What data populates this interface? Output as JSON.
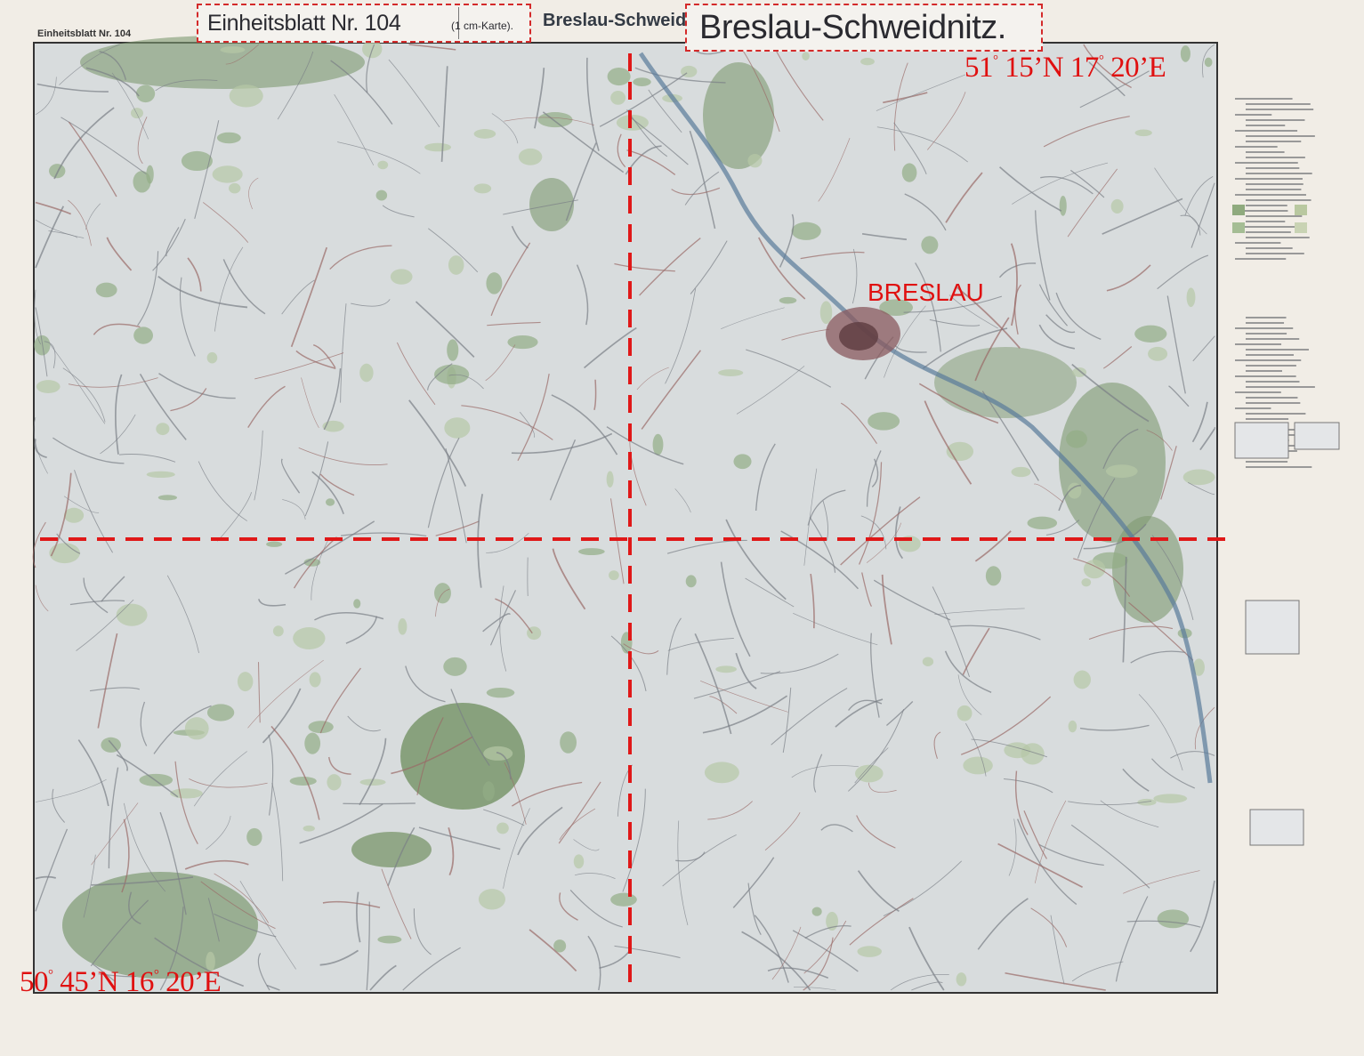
{
  "sheet": {
    "header_small": "Einheitsblatt Nr. 104",
    "header_partial": "Breslau-Schweid",
    "box_title": "Einheitsblatt Nr. 104",
    "box_scale": "(1 cm-Karte).",
    "main_title": "Breslau-Schweidnitz."
  },
  "annotations": {
    "ne_corner": {
      "lat_deg": "51",
      "lat_rest": " 15’N ",
      "lon_deg": "17",
      "lon_rest": " 20’E"
    },
    "sw_corner": {
      "lat_deg": "50",
      "lat_rest": " 45’N ",
      "lon_deg": "16",
      "lon_rest": " 20’E"
    },
    "city_label": "BRESLAU",
    "annotation_color": "#e01010"
  },
  "map_style": {
    "paper": "#f1ede6",
    "land": "#d9dde0",
    "forest": "#8faa7e",
    "roads": "#8a6a6a",
    "rivers": "#5a7a9a",
    "grid_lines": "dashed red quadrant divisions"
  }
}
